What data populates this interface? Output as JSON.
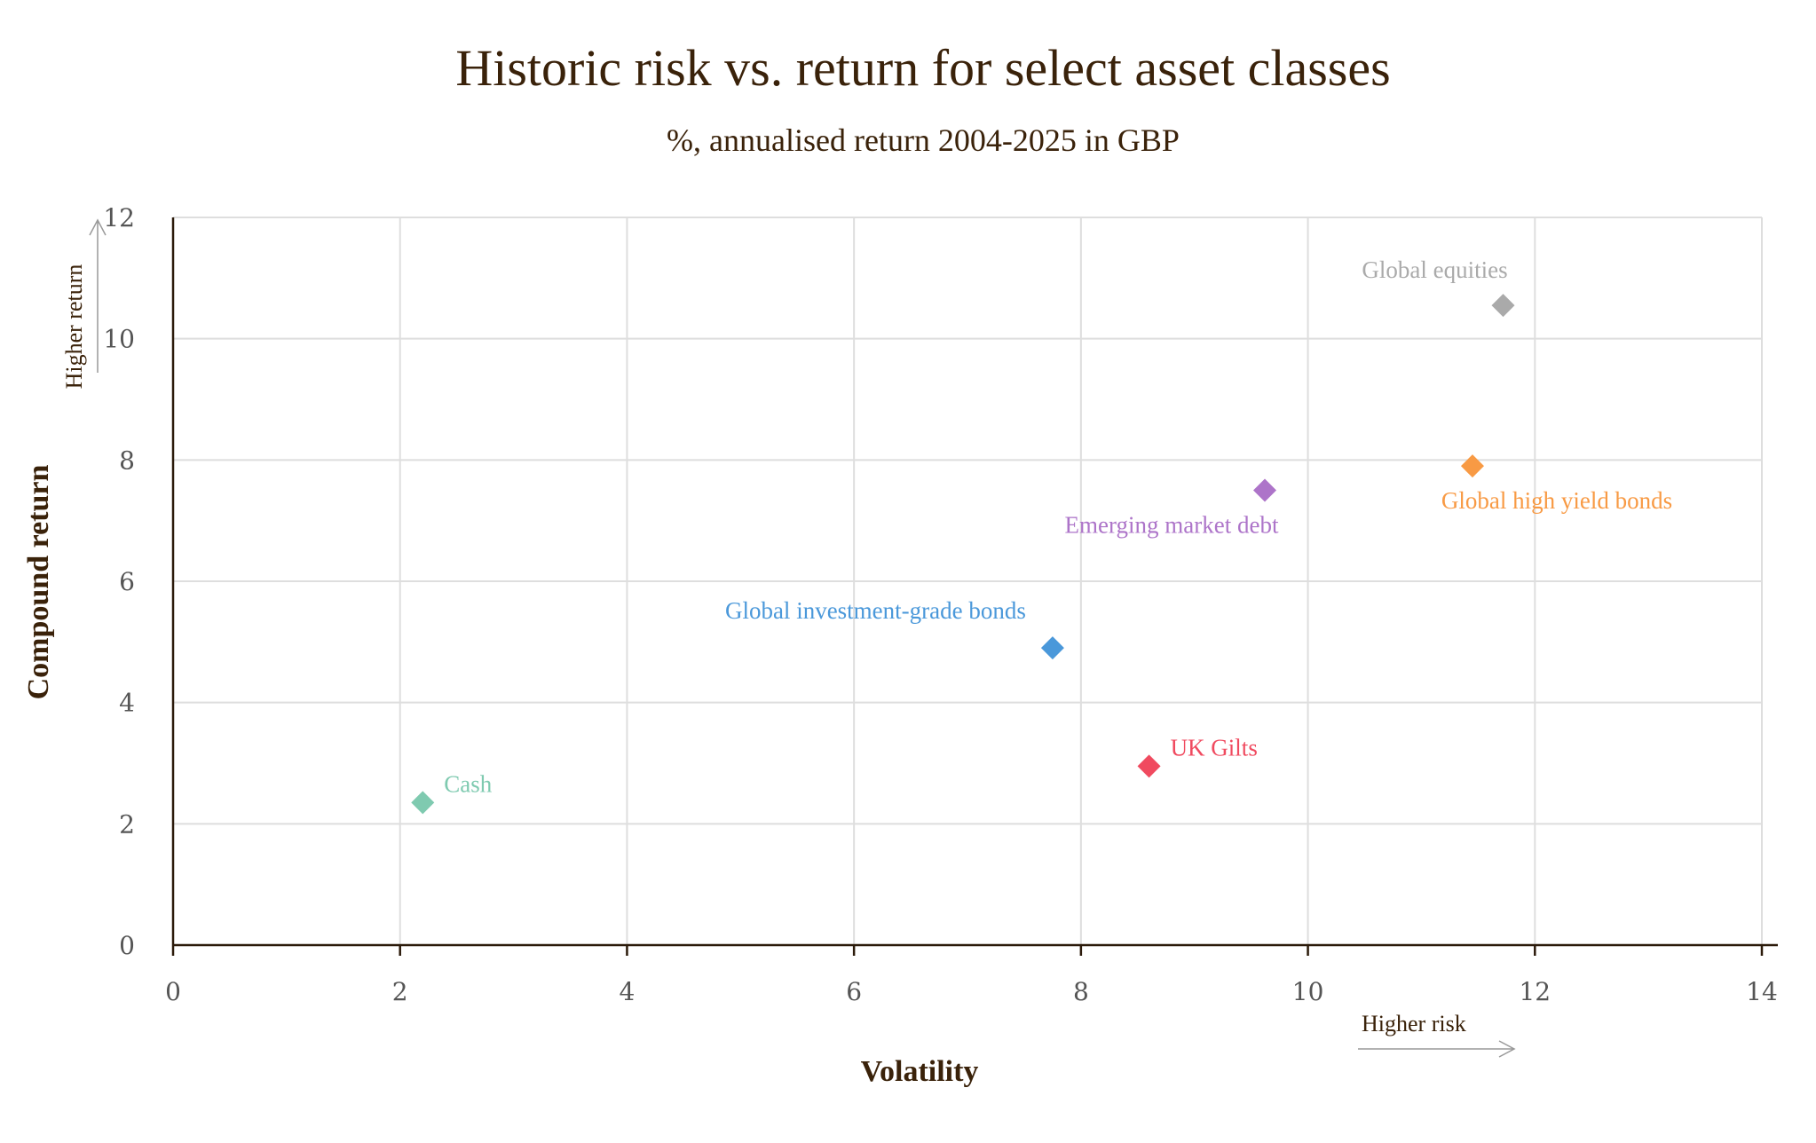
{
  "chart_data": {
    "type": "scatter",
    "title": "Historic risk vs. return for select asset classes",
    "subtitle": "%, annualised return 2004-2025 in GBP",
    "xlabel": "Volatility",
    "ylabel": "Compound return",
    "xlim": [
      0,
      14
    ],
    "ylim": [
      0,
      12
    ],
    "xticks": [
      "0",
      "2",
      "4",
      "6",
      "8",
      "10",
      "12",
      "14"
    ],
    "yticks": [
      "0",
      "2",
      "4",
      "6",
      "8",
      "10",
      "12"
    ],
    "grid": true,
    "annotations": {
      "higher_return": "Higher return",
      "higher_risk": "Higher risk"
    },
    "series": [
      {
        "name": "Cash",
        "x": 2.2,
        "y": 2.35,
        "color": "#7fcab0",
        "label_pos": "right"
      },
      {
        "name": "UK Gilts",
        "x": 8.6,
        "y": 2.95,
        "color": "#f04a5f",
        "label_pos": "right"
      },
      {
        "name": "Global investment-grade bonds",
        "x": 7.75,
        "y": 4.9,
        "color": "#4a98da",
        "label_pos": "upper-left"
      },
      {
        "name": "Emerging market debt",
        "x": 9.62,
        "y": 7.5,
        "color": "#ad74c9",
        "label_pos": "below"
      },
      {
        "name": "Global high yield bonds",
        "x": 11.45,
        "y": 7.9,
        "color": "#f89a44",
        "label_pos": "below-right"
      },
      {
        "name": "Global equities",
        "x": 11.72,
        "y": 10.55,
        "color": "#aaaaaa",
        "label_pos": "above-left"
      }
    ]
  }
}
